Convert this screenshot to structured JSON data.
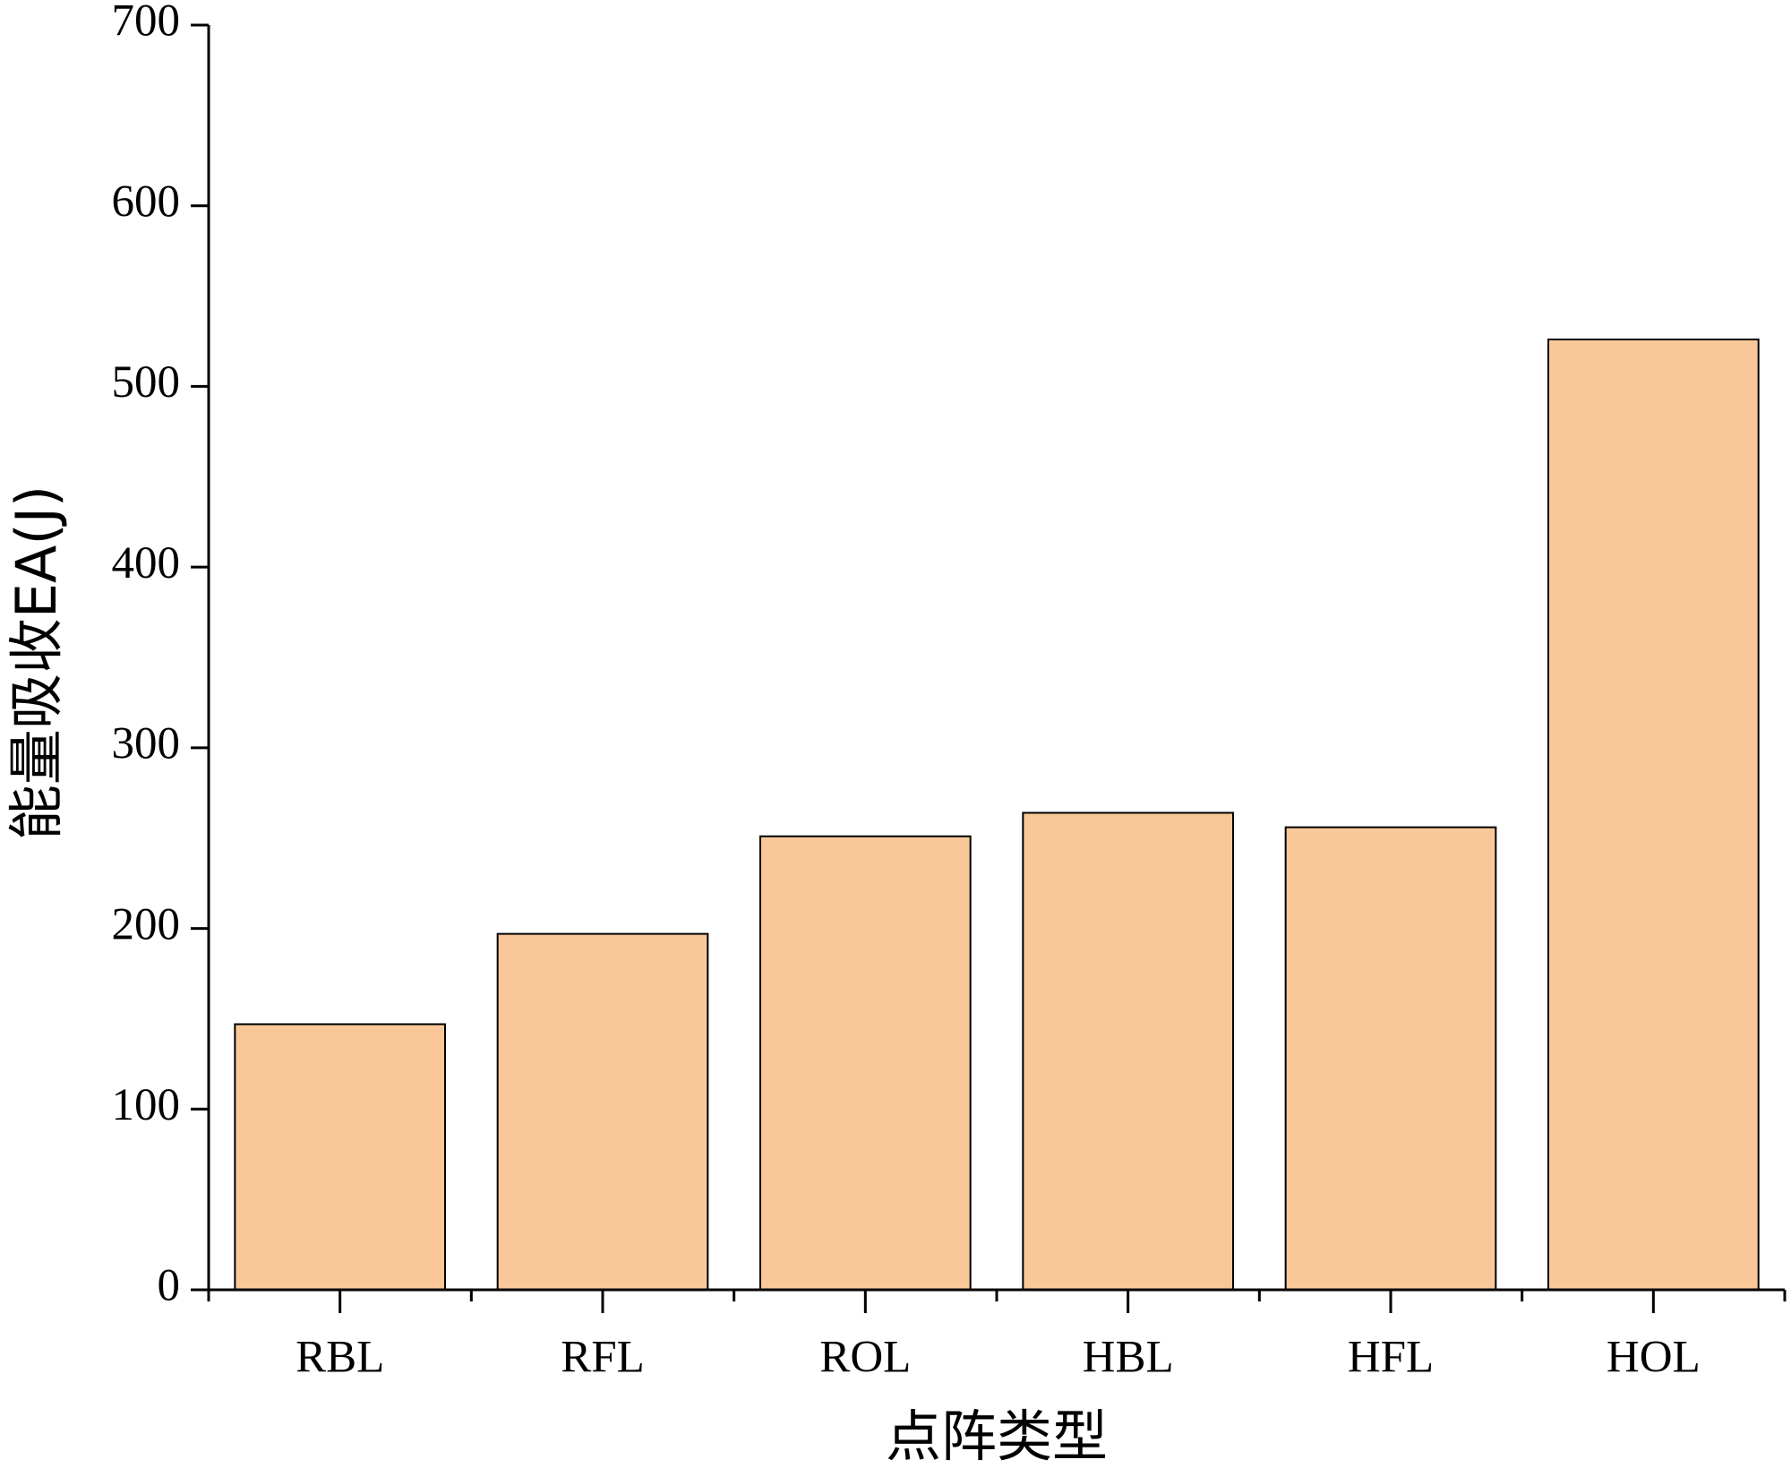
{
  "chart_data": {
    "type": "bar",
    "x_label": "点阵类型",
    "y_label": "能量吸收EA(J)",
    "categories": [
      "RBL",
      "RFL",
      "ROL",
      "HBL",
      "HFL",
      "HOL"
    ],
    "values": [
      147,
      197,
      251,
      264,
      256,
      526
    ],
    "color": "#fac898",
    "ylim": [
      0,
      700
    ],
    "yticks": [
      0,
      100,
      200,
      300,
      400,
      500,
      600,
      700
    ]
  }
}
